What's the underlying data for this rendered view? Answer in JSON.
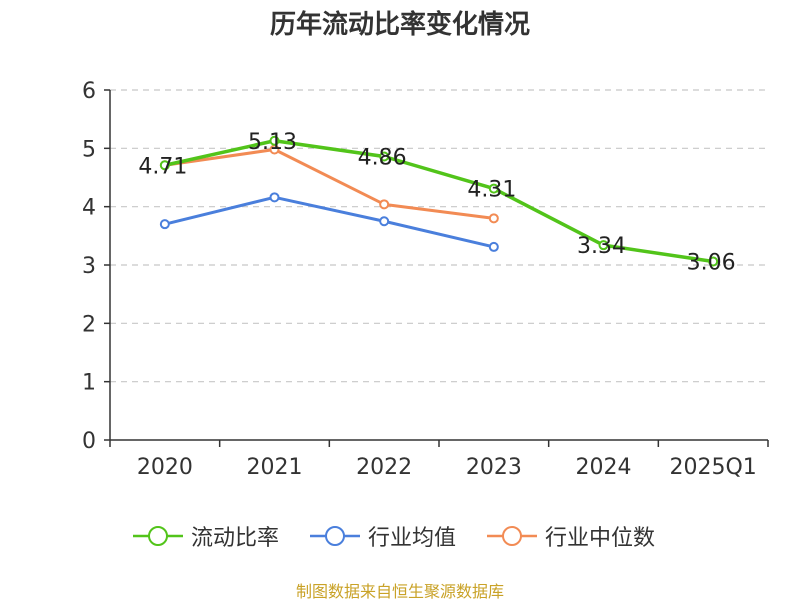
{
  "chart_data": {
    "type": "line",
    "title": "历年流动比率变化情况",
    "categories": [
      "2020",
      "2021",
      "2022",
      "2023",
      "2024",
      "2025Q1"
    ],
    "ylim": [
      0,
      6
    ],
    "yticks": [
      0,
      1,
      2,
      3,
      4,
      5,
      6
    ],
    "grid": true,
    "legend_position": "bottom",
    "series": [
      {
        "name": "流动比率",
        "color": "#52c41a",
        "values": [
          4.71,
          5.13,
          4.86,
          4.31,
          3.34,
          3.06
        ],
        "labels": [
          "4.71",
          "5.13",
          "4.86",
          "4.31",
          "3.34",
          "3.06"
        ]
      },
      {
        "name": "行业均值",
        "color": "#4a7fdc",
        "values": [
          3.7,
          4.16,
          3.75,
          3.31,
          null,
          null
        ]
      },
      {
        "name": "行业中位数",
        "color": "#f28b54",
        "values": [
          4.71,
          4.98,
          4.04,
          3.8,
          null,
          null
        ]
      }
    ]
  },
  "source": "制图数据来自恒生聚源数据库"
}
